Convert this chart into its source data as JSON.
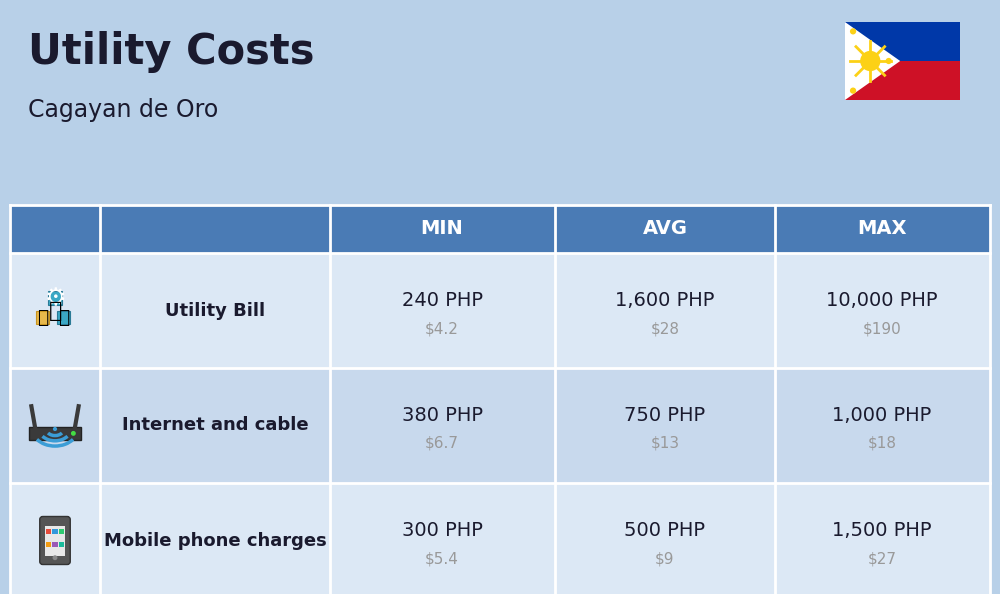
{
  "title": "Utility Costs",
  "subtitle": "Cagayan de Oro",
  "background_color": "#b8d0e8",
  "header_bg_color": "#4a7bb5",
  "header_text_color": "#ffffff",
  "row_bg_color_1": "#dce8f5",
  "row_bg_color_2": "#c8d9ed",
  "col_header_labels": [
    "MIN",
    "AVG",
    "MAX"
  ],
  "rows": [
    {
      "label": "Utility Bill",
      "min_php": "240 PHP",
      "min_usd": "$4.2",
      "avg_php": "1,600 PHP",
      "avg_usd": "$28",
      "max_php": "10,000 PHP",
      "max_usd": "$190"
    },
    {
      "label": "Internet and cable",
      "min_php": "380 PHP",
      "min_usd": "$6.7",
      "avg_php": "750 PHP",
      "avg_usd": "$13",
      "max_php": "1,000 PHP",
      "max_usd": "$18"
    },
    {
      "label": "Mobile phone charges",
      "min_php": "300 PHP",
      "min_usd": "$5.4",
      "avg_php": "500 PHP",
      "avg_usd": "$9",
      "max_php": "1,500 PHP",
      "max_usd": "$27"
    }
  ],
  "title_fontsize": 30,
  "subtitle_fontsize": 17,
  "header_fontsize": 14,
  "row_label_fontsize": 13,
  "value_php_fontsize": 14,
  "value_usd_fontsize": 11,
  "usd_color": "#999999",
  "text_color": "#1a1a2e"
}
